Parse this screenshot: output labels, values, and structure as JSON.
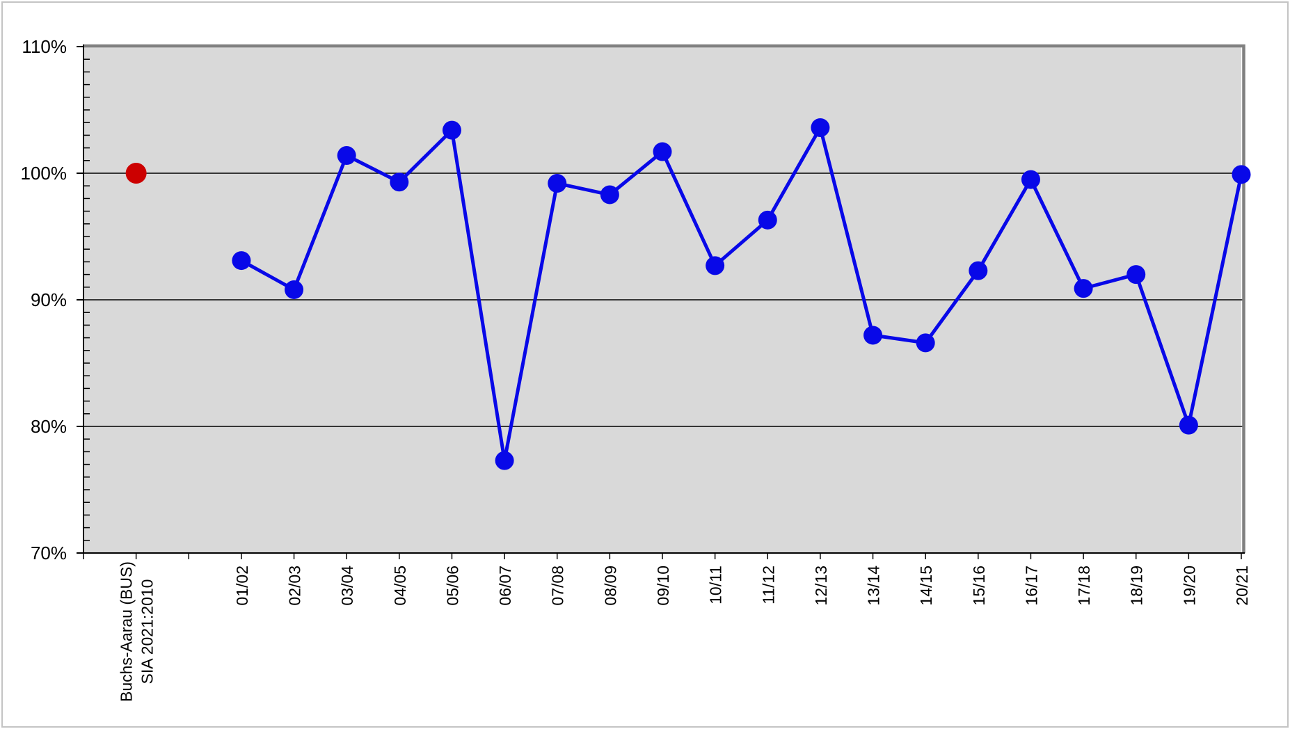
{
  "page": {
    "background": "#FFFFFF",
    "frame_color": "#C4C4C4"
  },
  "chart_data": {
    "type": "line",
    "title": "",
    "legend": "none",
    "plot_bg": "#D9D9D9",
    "grid": "horizontal major gridlines every 10%, minor y ticks every 1%",
    "border_color": "#808080",
    "axis_color": "#000000",
    "ylim": [
      70,
      110
    ],
    "y_major_step": 10,
    "y_minor_step": 1,
    "y_ticks": {
      "values": [
        110,
        100,
        90,
        80,
        70
      ],
      "labels": [
        "110%",
        "100%",
        "90%",
        "80%",
        "70%"
      ]
    },
    "x_slots": 22,
    "reference_point": {
      "slot": 0,
      "label_lines": [
        "Buchs-Aarau (BUS)",
        "SIA 2021:2010"
      ],
      "value": 100.0,
      "color": "#CC0000"
    },
    "first_category_slot": 2,
    "categories": [
      "01/02",
      "02/03",
      "03/04",
      "04/05",
      "05/06",
      "06/07",
      "07/08",
      "08/09",
      "09/10",
      "10/11",
      "11/12",
      "12/13",
      "13/14",
      "14/15",
      "15/16",
      "16/17",
      "17/18",
      "18/19",
      "19/20",
      "20/21"
    ],
    "series": [
      {
        "color": "#0808E8",
        "values": [
          93.1,
          90.8,
          101.4,
          99.3,
          103.4,
          77.3,
          99.2,
          98.3,
          101.7,
          92.7,
          96.3,
          103.6,
          87.2,
          86.6,
          92.3,
          99.5,
          90.9,
          92.0,
          80.1,
          99.9
        ]
      }
    ]
  }
}
